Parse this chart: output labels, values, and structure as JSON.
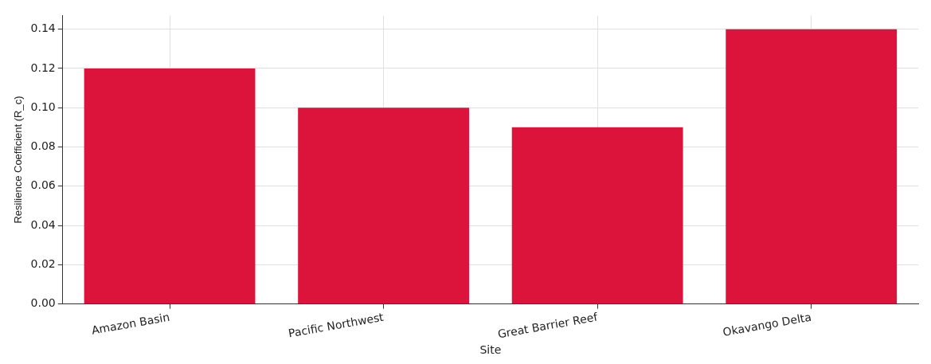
{
  "chart_data": {
    "type": "bar",
    "xlabel": "Site",
    "ylabel": "Resilience Coefficient (R_c)",
    "categories": [
      "Amazon Basin",
      "Pacific Northwest",
      "Great Barrier Reef",
      "Okavango Delta"
    ],
    "values": [
      0.12,
      0.1,
      0.09,
      0.14
    ],
    "color": "#dc143c",
    "ylim": [
      0,
      0.147
    ],
    "yticks": [
      {
        "value": 0,
        "label": "0.00"
      },
      {
        "value": 0.02,
        "label": "0.02"
      },
      {
        "value": 0.04,
        "label": "0.04"
      },
      {
        "value": 0.06,
        "label": "0.06"
      },
      {
        "value": 0.08,
        "label": "0.08"
      },
      {
        "value": 0.1,
        "label": "0.10"
      },
      {
        "value": 0.12,
        "label": "0.12"
      },
      {
        "value": 0.14,
        "label": "0.14"
      }
    ],
    "grid": true
  }
}
